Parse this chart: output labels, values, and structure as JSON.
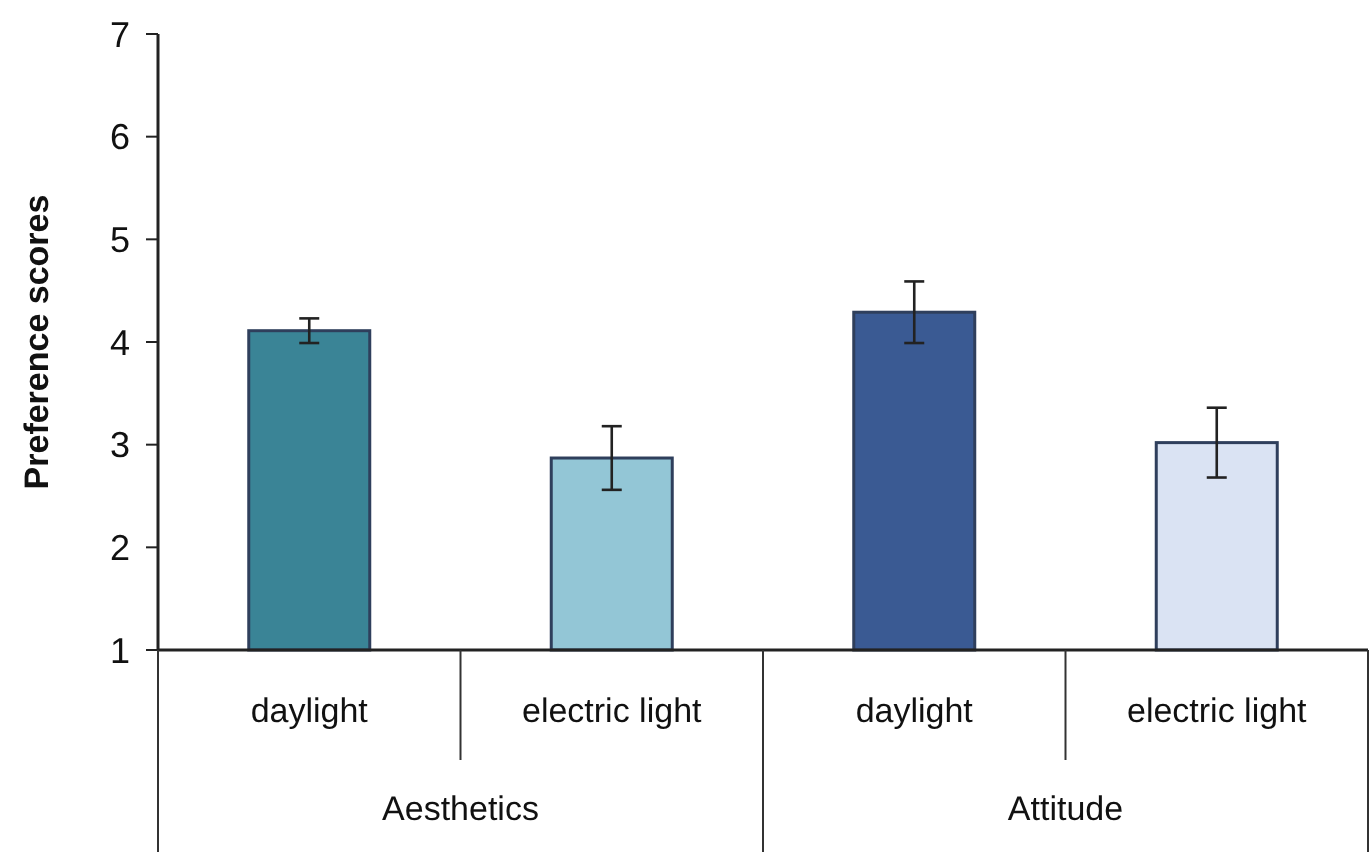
{
  "chart_data": {
    "type": "bar",
    "ylabel": "Preference scores",
    "categories": [
      "daylight",
      "electric light",
      "daylight",
      "electric light"
    ],
    "values": [
      4.11,
      2.87,
      4.29,
      3.02
    ],
    "errors": [
      0.12,
      0.31,
      0.3,
      0.34
    ],
    "colors": [
      "#3a8496",
      "#93c6d6",
      "#3a5a93",
      "#dae3f3"
    ],
    "annotations": [
      "Aesthetics",
      "Attitude"
    ],
    "ylim": [
      1,
      7
    ],
    "yticks": [
      1,
      2,
      3,
      4,
      5,
      6,
      7
    ],
    "grid": false
  }
}
